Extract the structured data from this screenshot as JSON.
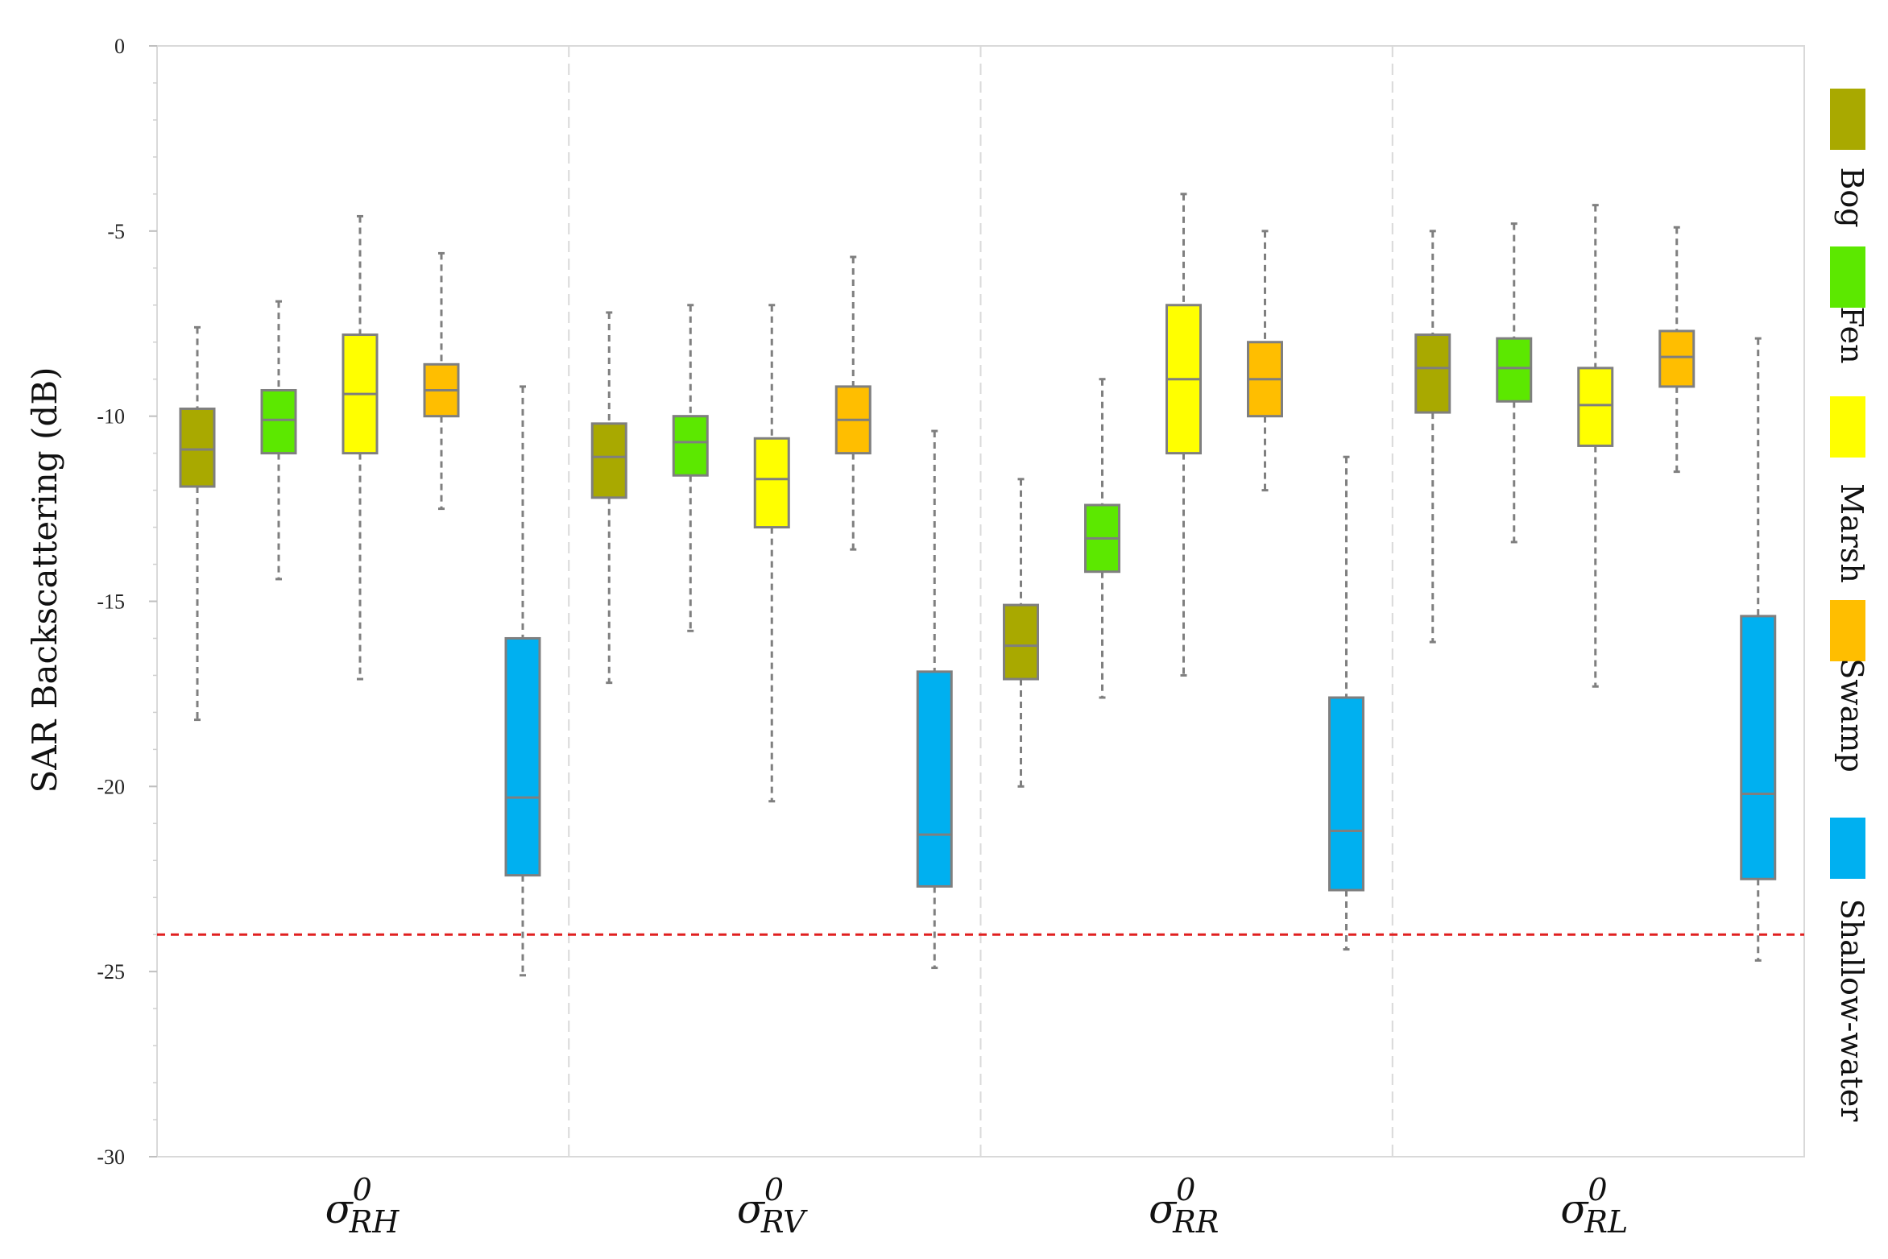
{
  "chart_data": {
    "type": "boxplot",
    "title": "",
    "ylabel": "SAR Backscattering (dB)",
    "xlabel": "",
    "ylim": [
      -30,
      0
    ],
    "yticks": [
      0,
      -5,
      -10,
      -15,
      -20,
      -25,
      -30
    ],
    "ytick_labels": [
      "0",
      "-5",
      "-10",
      "-15",
      "-20",
      "-25",
      "-30"
    ],
    "threshold": -24,
    "groups": [
      {
        "symbol": "σ",
        "sup": "0",
        "sub": "RH"
      },
      {
        "symbol": "σ",
        "sup": "0",
        "sub": "RV"
      },
      {
        "symbol": "σ",
        "sup": "0",
        "sub": "RR"
      },
      {
        "symbol": "σ",
        "sup": "0",
        "sub": "RL"
      }
    ],
    "legend": [
      {
        "name": "Bog",
        "color": "#a9a900"
      },
      {
        "name": "Fen",
        "color": "#5ce800"
      },
      {
        "name": "Marsh",
        "color": "#ffff00"
      },
      {
        "name": "Swamp",
        "color": "#ffbe00"
      },
      {
        "name": "Shallow-water",
        "color": "#00b0f0"
      }
    ],
    "series": [
      {
        "name": "Bog",
        "color": "#a9a900",
        "boxes": [
          {
            "min": -18.2,
            "q1": -11.9,
            "median": -10.9,
            "q3": -9.8,
            "max": -7.6
          },
          {
            "min": -17.2,
            "q1": -12.2,
            "median": -11.1,
            "q3": -10.2,
            "max": -7.2
          },
          {
            "min": -20.0,
            "q1": -17.1,
            "median": -16.2,
            "q3": -15.1,
            "max": -11.7
          },
          {
            "min": -16.1,
            "q1": -9.9,
            "median": -8.7,
            "q3": -7.8,
            "max": -5.0
          }
        ]
      },
      {
        "name": "Fen",
        "color": "#5ce800",
        "boxes": [
          {
            "min": -14.4,
            "q1": -11.0,
            "median": -10.1,
            "q3": -9.3,
            "max": -6.9
          },
          {
            "min": -15.8,
            "q1": -11.6,
            "median": -10.7,
            "q3": -10.0,
            "max": -7.0
          },
          {
            "min": -17.6,
            "q1": -14.2,
            "median": -13.3,
            "q3": -12.4,
            "max": -9.0
          },
          {
            "min": -13.4,
            "q1": -9.6,
            "median": -8.7,
            "q3": -7.9,
            "max": -4.8
          }
        ]
      },
      {
        "name": "Marsh",
        "color": "#ffff00",
        "boxes": [
          {
            "min": -17.1,
            "q1": -11.0,
            "median": -9.4,
            "q3": -7.8,
            "max": -4.6
          },
          {
            "min": -20.4,
            "q1": -13.0,
            "median": -11.7,
            "q3": -10.6,
            "max": -7.0
          },
          {
            "min": -17.0,
            "q1": -11.0,
            "median": -9.0,
            "q3": -7.0,
            "max": -4.0
          },
          {
            "min": -17.3,
            "q1": -10.8,
            "median": -9.7,
            "q3": -8.7,
            "max": -4.3
          }
        ]
      },
      {
        "name": "Swamp",
        "color": "#ffbe00",
        "boxes": [
          {
            "min": -12.5,
            "q1": -10.0,
            "median": -9.3,
            "q3": -8.6,
            "max": -5.6
          },
          {
            "min": -13.6,
            "q1": -11.0,
            "median": -10.1,
            "q3": -9.2,
            "max": -5.7
          },
          {
            "min": -12.0,
            "q1": -10.0,
            "median": -9.0,
            "q3": -8.0,
            "max": -5.0
          },
          {
            "min": -11.5,
            "q1": -9.2,
            "median": -8.4,
            "q3": -7.7,
            "max": -4.9
          }
        ]
      },
      {
        "name": "Shallow-water",
        "color": "#00b0f0",
        "boxes": [
          {
            "min": -25.1,
            "q1": -22.4,
            "median": -20.3,
            "q3": -16.0,
            "max": -9.2
          },
          {
            "min": -24.9,
            "q1": -22.7,
            "median": -21.3,
            "q3": -16.9,
            "max": -10.4
          },
          {
            "min": -24.4,
            "q1": -22.8,
            "median": -21.2,
            "q3": -17.6,
            "max": -11.1
          },
          {
            "min": -24.7,
            "q1": -22.5,
            "median": -20.2,
            "q3": -15.4,
            "max": -7.9
          }
        ]
      }
    ]
  }
}
